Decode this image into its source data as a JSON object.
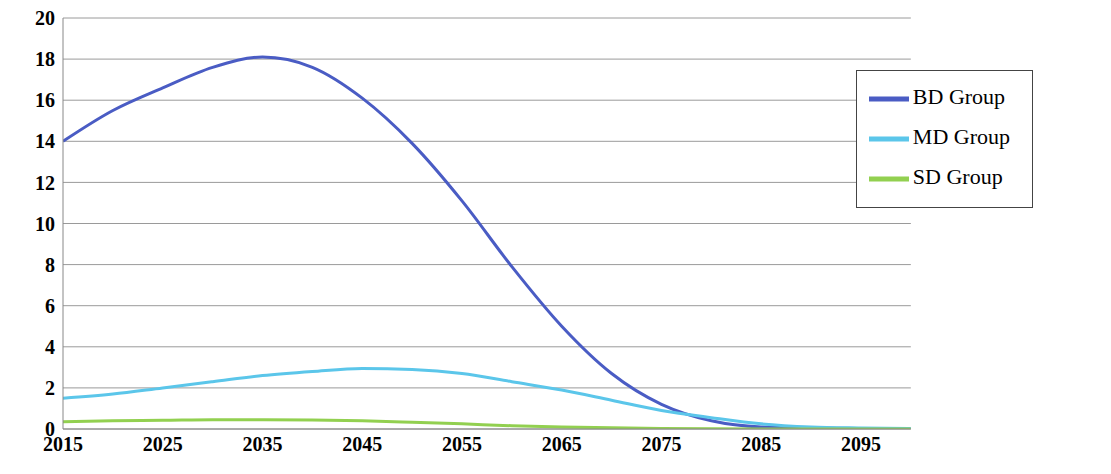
{
  "chart_data": {
    "type": "line",
    "x": [
      2015,
      2020,
      2025,
      2030,
      2035,
      2040,
      2045,
      2050,
      2055,
      2060,
      2065,
      2070,
      2075,
      2080,
      2085,
      2090,
      2095,
      2100
    ],
    "series": [
      {
        "name": "BD Group",
        "color": "#4a5cc4",
        "values": [
          14.0,
          15.5,
          16.6,
          17.6,
          18.1,
          17.6,
          16.1,
          13.9,
          11.1,
          7.9,
          5.0,
          2.7,
          1.2,
          0.4,
          0.1,
          0.05,
          0.02,
          0.0
        ]
      },
      {
        "name": "MD Group",
        "color": "#5bc6ea",
        "values": [
          1.5,
          1.7,
          2.0,
          2.3,
          2.6,
          2.8,
          2.95,
          2.9,
          2.7,
          2.3,
          1.9,
          1.4,
          0.9,
          0.55,
          0.25,
          0.1,
          0.05,
          0.02
        ]
      },
      {
        "name": "SD Group",
        "color": "#92d050",
        "values": [
          0.35,
          0.4,
          0.42,
          0.45,
          0.45,
          0.44,
          0.4,
          0.33,
          0.25,
          0.16,
          0.1,
          0.06,
          0.03,
          0.01,
          0.0,
          0.0,
          0.0,
          0.0
        ]
      }
    ],
    "xlim": [
      2015,
      2100
    ],
    "xticks": [
      2015,
      2025,
      2035,
      2045,
      2055,
      2065,
      2075,
      2085,
      2095
    ],
    "ylim": [
      0,
      20
    ],
    "yticks": [
      0,
      2,
      4,
      6,
      8,
      10,
      12,
      14,
      16,
      18,
      20
    ],
    "grid": true,
    "legend": "upper right"
  }
}
